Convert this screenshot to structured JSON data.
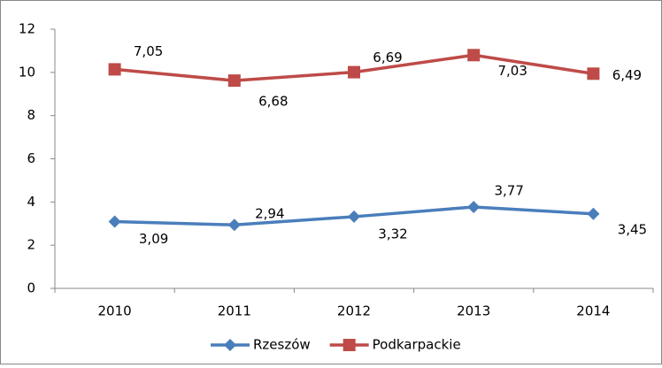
{
  "chart_data": {
    "type": "line",
    "stacked": true,
    "categories": [
      "2010",
      "2011",
      "2012",
      "2013",
      "2014"
    ],
    "series": [
      {
        "name": "Rzeszów",
        "color": "#4a7ebb",
        "marker": "diamond",
        "values": [
          3.09,
          2.94,
          3.32,
          3.77,
          3.45
        ],
        "value_labels": [
          "3,09",
          "2,94",
          "3,32",
          "3,77",
          "3,45"
        ]
      },
      {
        "name": "Podkarpackie",
        "color": "#be4b48",
        "marker": "square",
        "values": [
          7.05,
          6.68,
          6.69,
          7.03,
          6.49
        ],
        "value_labels": [
          "7,05",
          "6,68",
          "6,69",
          "7,03",
          "6,49"
        ]
      }
    ],
    "ylim": [
      0,
      12
    ],
    "yticks": [
      0,
      2,
      4,
      6,
      8,
      10,
      12
    ],
    "grid": false,
    "legend": "bottom"
  }
}
